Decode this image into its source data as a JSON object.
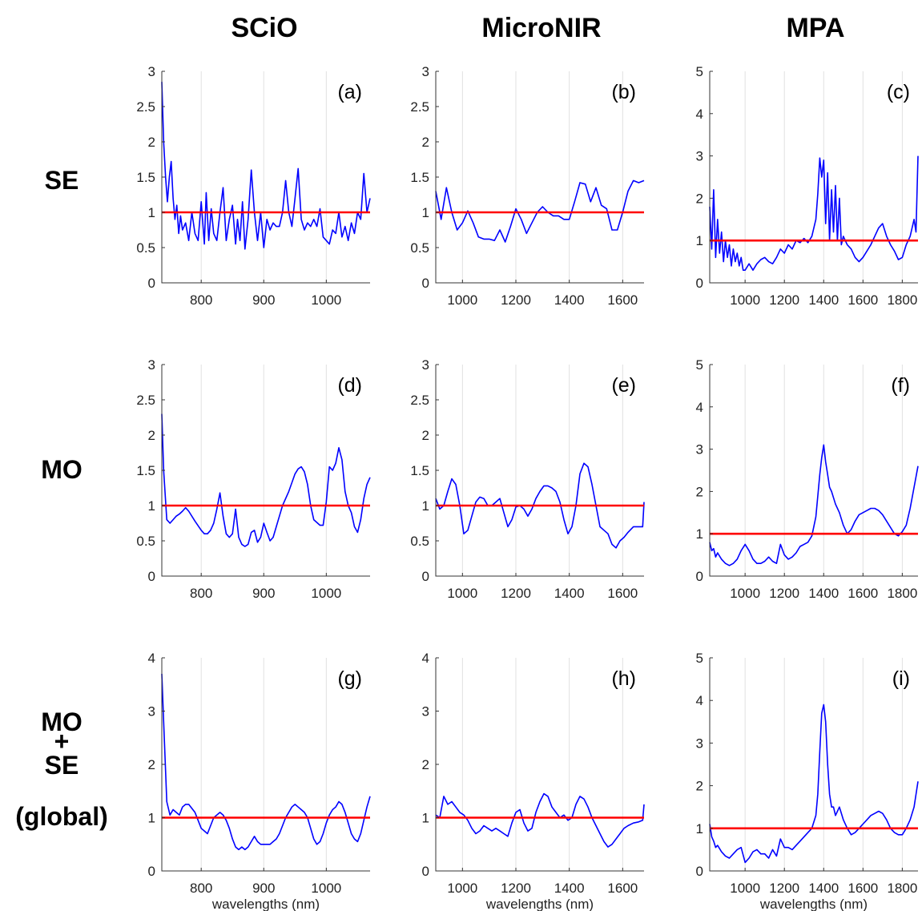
{
  "columns": [
    "SCiO",
    "MicroNIR",
    "MPA"
  ],
  "rows": [
    "SE",
    "MO",
    "MO\n+\nSE\n(global)"
  ],
  "colors": {
    "line": "#0000ff",
    "reference": "#ff0000",
    "grid": "#e0e0e0",
    "axis": "#333333"
  },
  "chart_data": [
    {
      "label": "(a)",
      "type": "line",
      "xlabel": "",
      "xlim": [
        737,
        1070
      ],
      "ylim": [
        0,
        3
      ],
      "xticks": [
        800,
        900,
        1000
      ],
      "yticks": [
        0,
        0.5,
        1,
        1.5,
        2,
        2.5,
        3
      ],
      "grid": "vertical",
      "reference_y": 1,
      "x": [
        737,
        740,
        743,
        746,
        749,
        752,
        755,
        758,
        761,
        764,
        767,
        770,
        775,
        780,
        785,
        790,
        795,
        800,
        805,
        808,
        812,
        816,
        820,
        825,
        830,
        835,
        840,
        845,
        850,
        855,
        858,
        862,
        866,
        870,
        875,
        880,
        885,
        890,
        895,
        900,
        905,
        910,
        915,
        920,
        925,
        930,
        935,
        940,
        945,
        950,
        955,
        960,
        965,
        970,
        975,
        980,
        985,
        990,
        995,
        1000,
        1005,
        1010,
        1015,
        1020,
        1025,
        1030,
        1035,
        1040,
        1045,
        1050,
        1055,
        1060,
        1065,
        1070
      ],
      "y": [
        2.85,
        2.0,
        1.5,
        1.15,
        1.5,
        1.72,
        1.2,
        0.9,
        1.1,
        0.7,
        0.95,
        0.75,
        0.85,
        0.6,
        1.0,
        0.7,
        0.6,
        1.15,
        0.55,
        1.28,
        0.6,
        1.05,
        0.7,
        0.6,
        1.0,
        1.35,
        0.6,
        0.9,
        1.1,
        0.55,
        0.9,
        0.6,
        1.15,
        0.48,
        0.9,
        1.6,
        1.0,
        0.6,
        1.0,
        0.5,
        0.9,
        0.75,
        0.85,
        0.8,
        0.8,
        1.0,
        1.45,
        1.0,
        0.8,
        1.2,
        1.62,
        0.9,
        0.75,
        0.85,
        0.8,
        0.9,
        0.8,
        1.05,
        0.65,
        0.6,
        0.55,
        0.75,
        0.7,
        1.0,
        0.65,
        0.8,
        0.6,
        0.85,
        0.7,
        1.0,
        0.9,
        1.55,
        1.0,
        1.2
      ]
    },
    {
      "label": "(b)",
      "type": "line",
      "xlabel": "",
      "xlim": [
        900,
        1680
      ],
      "ylim": [
        0,
        3
      ],
      "xticks": [
        1000,
        1200,
        1400,
        1600
      ],
      "yticks": [
        0,
        0.5,
        1,
        1.5,
        2,
        2.5,
        3
      ],
      "grid": "vertical",
      "reference_y": 1,
      "x": [
        900,
        920,
        940,
        960,
        980,
        1000,
        1020,
        1040,
        1060,
        1080,
        1100,
        1120,
        1140,
        1160,
        1180,
        1200,
        1220,
        1240,
        1260,
        1280,
        1300,
        1320,
        1340,
        1360,
        1380,
        1400,
        1420,
        1440,
        1460,
        1480,
        1500,
        1520,
        1540,
        1560,
        1580,
        1600,
        1620,
        1640,
        1660,
        1680
      ],
      "y": [
        1.3,
        0.9,
        1.35,
        1.0,
        0.75,
        0.85,
        1.02,
        0.85,
        0.65,
        0.62,
        0.62,
        0.6,
        0.75,
        0.58,
        0.8,
        1.05,
        0.9,
        0.7,
        0.85,
        1.0,
        1.08,
        1.0,
        0.95,
        0.95,
        0.9,
        0.9,
        1.15,
        1.42,
        1.4,
        1.15,
        1.35,
        1.1,
        1.05,
        0.75,
        0.75,
        1.0,
        1.3,
        1.45,
        1.42,
        1.45
      ]
    },
    {
      "label": "(c)",
      "type": "line",
      "xlabel": "",
      "xlim": [
        820,
        1880
      ],
      "ylim": [
        0,
        5
      ],
      "xticks": [
        1000,
        1200,
        1400,
        1600,
        1800
      ],
      "yticks": [
        0,
        1,
        2,
        3,
        4,
        5
      ],
      "grid": "vertical",
      "reference_y": 1,
      "x": [
        820,
        830,
        840,
        850,
        860,
        870,
        880,
        890,
        900,
        910,
        920,
        930,
        940,
        950,
        960,
        970,
        980,
        990,
        1000,
        1020,
        1040,
        1060,
        1080,
        1100,
        1120,
        1140,
        1160,
        1180,
        1200,
        1220,
        1240,
        1260,
        1280,
        1300,
        1320,
        1340,
        1360,
        1370,
        1380,
        1390,
        1400,
        1410,
        1420,
        1430,
        1440,
        1450,
        1460,
        1470,
        1480,
        1490,
        1500,
        1510,
        1520,
        1540,
        1560,
        1580,
        1600,
        1620,
        1640,
        1660,
        1680,
        1700,
        1720,
        1740,
        1760,
        1780,
        1800,
        1820,
        1840,
        1860,
        1870,
        1880
      ],
      "y": [
        1.8,
        0.8,
        2.2,
        0.6,
        1.5,
        0.7,
        1.2,
        0.5,
        1.0,
        0.6,
        0.9,
        0.4,
        0.8,
        0.5,
        0.7,
        0.4,
        0.6,
        0.3,
        0.3,
        0.45,
        0.3,
        0.45,
        0.55,
        0.6,
        0.5,
        0.45,
        0.6,
        0.8,
        0.7,
        0.9,
        0.8,
        1.0,
        0.95,
        1.05,
        0.95,
        1.1,
        1.5,
        2.1,
        2.95,
        2.5,
        2.9,
        1.4,
        2.6,
        1.0,
        2.2,
        1.2,
        2.3,
        1.0,
        2.0,
        0.9,
        1.1,
        1.0,
        0.9,
        0.8,
        0.6,
        0.5,
        0.6,
        0.75,
        0.9,
        1.1,
        1.3,
        1.4,
        1.1,
        0.9,
        0.75,
        0.55,
        0.6,
        0.9,
        1.1,
        1.5,
        1.2,
        3.0
      ]
    },
    {
      "label": "(d)",
      "type": "line",
      "xlabel": "",
      "xlim": [
        737,
        1070
      ],
      "ylim": [
        0,
        3
      ],
      "xticks": [
        800,
        900,
        1000
      ],
      "yticks": [
        0,
        0.5,
        1,
        1.5,
        2,
        2.5,
        3
      ],
      "grid": "vertical",
      "reference_y": 1,
      "x": [
        737,
        740,
        745,
        750,
        755,
        760,
        765,
        770,
        775,
        780,
        790,
        800,
        805,
        810,
        815,
        820,
        825,
        830,
        835,
        840,
        845,
        850,
        855,
        860,
        865,
        870,
        875,
        880,
        885,
        890,
        895,
        900,
        905,
        910,
        915,
        920,
        925,
        930,
        940,
        950,
        955,
        960,
        965,
        970,
        975,
        980,
        990,
        995,
        1000,
        1005,
        1010,
        1015,
        1020,
        1025,
        1030,
        1035,
        1040,
        1045,
        1050,
        1055,
        1060,
        1065,
        1070
      ],
      "y": [
        2.3,
        1.5,
        0.8,
        0.75,
        0.8,
        0.85,
        0.88,
        0.92,
        0.97,
        0.92,
        0.78,
        0.65,
        0.6,
        0.6,
        0.65,
        0.75,
        0.95,
        1.18,
        0.85,
        0.6,
        0.55,
        0.6,
        0.95,
        0.55,
        0.45,
        0.42,
        0.45,
        0.62,
        0.65,
        0.48,
        0.55,
        0.75,
        0.62,
        0.5,
        0.55,
        0.7,
        0.85,
        1.0,
        1.2,
        1.45,
        1.52,
        1.55,
        1.48,
        1.3,
        1.0,
        0.8,
        0.72,
        0.72,
        1.05,
        1.55,
        1.5,
        1.6,
        1.82,
        1.65,
        1.2,
        1.0,
        0.9,
        0.7,
        0.62,
        0.8,
        1.1,
        1.3,
        1.4
      ]
    },
    {
      "label": "(e)",
      "type": "line",
      "xlabel": "",
      "xlim": [
        900,
        1680
      ],
      "ylim": [
        0,
        3
      ],
      "xticks": [
        1000,
        1200,
        1400,
        1600
      ],
      "yticks": [
        0,
        0.5,
        1,
        1.5,
        2,
        2.5,
        3
      ],
      "grid": "vertical",
      "reference_y": 1,
      "x": [
        900,
        915,
        930,
        945,
        960,
        975,
        990,
        1005,
        1020,
        1035,
        1050,
        1065,
        1080,
        1095,
        1110,
        1125,
        1140,
        1155,
        1170,
        1185,
        1200,
        1215,
        1230,
        1245,
        1260,
        1275,
        1290,
        1305,
        1320,
        1335,
        1350,
        1365,
        1380,
        1395,
        1410,
        1425,
        1440,
        1455,
        1470,
        1485,
        1500,
        1515,
        1530,
        1545,
        1560,
        1575,
        1590,
        1605,
        1620,
        1640,
        1660,
        1675,
        1680
      ],
      "y": [
        1.1,
        0.95,
        1.0,
        1.2,
        1.38,
        1.3,
        1.0,
        0.6,
        0.65,
        0.85,
        1.05,
        1.12,
        1.1,
        1.0,
        1.0,
        1.05,
        1.1,
        0.9,
        0.7,
        0.8,
        0.98,
        1.0,
        0.95,
        0.85,
        0.95,
        1.1,
        1.2,
        1.28,
        1.28,
        1.25,
        1.2,
        1.05,
        0.8,
        0.6,
        0.7,
        1.0,
        1.45,
        1.6,
        1.55,
        1.3,
        1.0,
        0.7,
        0.65,
        0.6,
        0.45,
        0.4,
        0.5,
        0.55,
        0.62,
        0.7,
        0.7,
        0.7,
        1.05
      ]
    },
    {
      "label": "(f)",
      "type": "line",
      "xlabel": "",
      "xlim": [
        820,
        1880
      ],
      "ylim": [
        0,
        5
      ],
      "xticks": [
        1000,
        1200,
        1400,
        1600,
        1800
      ],
      "yticks": [
        0,
        1,
        2,
        3,
        4,
        5
      ],
      "grid": "vertical",
      "reference_y": 1,
      "x": [
        820,
        830,
        840,
        850,
        860,
        880,
        900,
        920,
        940,
        960,
        980,
        1000,
        1020,
        1040,
        1060,
        1080,
        1100,
        1120,
        1140,
        1160,
        1180,
        1200,
        1220,
        1240,
        1260,
        1280,
        1300,
        1320,
        1340,
        1360,
        1380,
        1390,
        1400,
        1410,
        1420,
        1430,
        1440,
        1460,
        1480,
        1500,
        1520,
        1540,
        1560,
        1580,
        1600,
        1620,
        1640,
        1660,
        1680,
        1700,
        1720,
        1740,
        1760,
        1780,
        1800,
        1820,
        1840,
        1860,
        1880
      ],
      "y": [
        0.8,
        0.6,
        0.65,
        0.45,
        0.55,
        0.4,
        0.3,
        0.25,
        0.3,
        0.4,
        0.6,
        0.75,
        0.6,
        0.4,
        0.3,
        0.3,
        0.35,
        0.45,
        0.35,
        0.3,
        0.75,
        0.5,
        0.4,
        0.45,
        0.55,
        0.7,
        0.75,
        0.8,
        0.95,
        1.4,
        2.4,
        2.8,
        3.1,
        2.7,
        2.4,
        2.1,
        2.0,
        1.7,
        1.5,
        1.2,
        1.0,
        1.1,
        1.3,
        1.45,
        1.5,
        1.55,
        1.6,
        1.6,
        1.55,
        1.45,
        1.3,
        1.15,
        1.0,
        0.95,
        1.05,
        1.2,
        1.6,
        2.1,
        2.6
      ]
    },
    {
      "label": "(g)",
      "type": "line",
      "xlabel": "wavelengths (nm)",
      "xlim": [
        737,
        1070
      ],
      "ylim": [
        0,
        4
      ],
      "xticks": [
        800,
        900,
        1000
      ],
      "yticks": [
        0,
        1,
        2,
        3,
        4
      ],
      "grid": "vertical",
      "reference_y": 1,
      "x": [
        737,
        740,
        745,
        750,
        755,
        760,
        765,
        770,
        775,
        780,
        790,
        800,
        805,
        810,
        815,
        820,
        825,
        830,
        835,
        840,
        845,
        850,
        855,
        860,
        865,
        870,
        875,
        880,
        885,
        890,
        895,
        900,
        905,
        910,
        915,
        920,
        925,
        930,
        935,
        940,
        945,
        950,
        955,
        960,
        965,
        970,
        975,
        980,
        985,
        990,
        995,
        1000,
        1005,
        1010,
        1015,
        1020,
        1025,
        1030,
        1035,
        1040,
        1045,
        1050,
        1055,
        1060,
        1065,
        1070
      ],
      "y": [
        3.7,
        2.8,
        1.3,
        1.05,
        1.15,
        1.1,
        1.05,
        1.2,
        1.25,
        1.25,
        1.1,
        0.8,
        0.75,
        0.7,
        0.85,
        1.0,
        1.05,
        1.1,
        1.05,
        0.95,
        0.8,
        0.6,
        0.45,
        0.4,
        0.45,
        0.4,
        0.45,
        0.55,
        0.65,
        0.55,
        0.5,
        0.5,
        0.5,
        0.5,
        0.55,
        0.6,
        0.7,
        0.85,
        1.0,
        1.1,
        1.2,
        1.25,
        1.2,
        1.15,
        1.1,
        1.0,
        0.8,
        0.6,
        0.5,
        0.55,
        0.7,
        0.9,
        1.05,
        1.15,
        1.2,
        1.3,
        1.25,
        1.1,
        0.9,
        0.7,
        0.6,
        0.55,
        0.7,
        0.95,
        1.2,
        1.4
      ]
    },
    {
      "label": "(h)",
      "type": "line",
      "xlabel": "wavelengths (nm)",
      "xlim": [
        900,
        1680
      ],
      "ylim": [
        0,
        4
      ],
      "xticks": [
        1000,
        1200,
        1400,
        1600
      ],
      "yticks": [
        0,
        1,
        2,
        3,
        4
      ],
      "grid": "vertical",
      "reference_y": 1,
      "x": [
        900,
        915,
        930,
        945,
        960,
        975,
        990,
        1005,
        1020,
        1035,
        1050,
        1065,
        1080,
        1095,
        1110,
        1125,
        1140,
        1155,
        1170,
        1185,
        1200,
        1215,
        1230,
        1245,
        1260,
        1275,
        1290,
        1305,
        1320,
        1335,
        1350,
        1365,
        1380,
        1395,
        1410,
        1425,
        1440,
        1455,
        1470,
        1485,
        1500,
        1515,
        1530,
        1545,
        1560,
        1575,
        1590,
        1605,
        1620,
        1640,
        1660,
        1675,
        1680
      ],
      "y": [
        1.05,
        1.0,
        1.4,
        1.25,
        1.3,
        1.2,
        1.1,
        1.05,
        0.95,
        0.8,
        0.7,
        0.75,
        0.85,
        0.8,
        0.75,
        0.8,
        0.75,
        0.7,
        0.65,
        0.9,
        1.1,
        1.15,
        0.9,
        0.75,
        0.8,
        1.1,
        1.3,
        1.45,
        1.4,
        1.2,
        1.1,
        1.0,
        1.05,
        0.95,
        1.0,
        1.25,
        1.4,
        1.35,
        1.2,
        1.0,
        0.85,
        0.7,
        0.55,
        0.45,
        0.5,
        0.6,
        0.7,
        0.8,
        0.85,
        0.9,
        0.92,
        0.95,
        1.25
      ]
    },
    {
      "label": "(i)",
      "type": "line",
      "xlabel": "wavelengths (nm)",
      "xlim": [
        820,
        1880
      ],
      "ylim": [
        0,
        5
      ],
      "xticks": [
        1000,
        1200,
        1400,
        1600,
        1800
      ],
      "yticks": [
        0,
        1,
        2,
        3,
        4,
        5
      ],
      "grid": "vertical",
      "reference_y": 1,
      "x": [
        820,
        830,
        840,
        850,
        860,
        880,
        900,
        920,
        940,
        960,
        980,
        1000,
        1020,
        1040,
        1060,
        1080,
        1100,
        1120,
        1140,
        1160,
        1180,
        1200,
        1220,
        1240,
        1260,
        1280,
        1300,
        1320,
        1340,
        1360,
        1370,
        1380,
        1390,
        1400,
        1410,
        1420,
        1430,
        1440,
        1450,
        1460,
        1480,
        1500,
        1520,
        1540,
        1560,
        1580,
        1600,
        1620,
        1640,
        1660,
        1680,
        1700,
        1720,
        1740,
        1760,
        1780,
        1800,
        1820,
        1840,
        1860,
        1880
      ],
      "y": [
        1.1,
        0.8,
        0.7,
        0.55,
        0.6,
        0.45,
        0.35,
        0.3,
        0.4,
        0.5,
        0.55,
        0.2,
        0.3,
        0.45,
        0.5,
        0.4,
        0.4,
        0.3,
        0.5,
        0.35,
        0.75,
        0.55,
        0.55,
        0.5,
        0.6,
        0.7,
        0.8,
        0.9,
        1.0,
        1.3,
        1.8,
        2.8,
        3.7,
        3.9,
        3.5,
        2.5,
        1.8,
        1.5,
        1.5,
        1.3,
        1.5,
        1.2,
        1.0,
        0.85,
        0.9,
        1.0,
        1.1,
        1.2,
        1.3,
        1.35,
        1.4,
        1.35,
        1.2,
        1.0,
        0.9,
        0.85,
        0.85,
        1.0,
        1.2,
        1.5,
        2.1
      ]
    }
  ]
}
